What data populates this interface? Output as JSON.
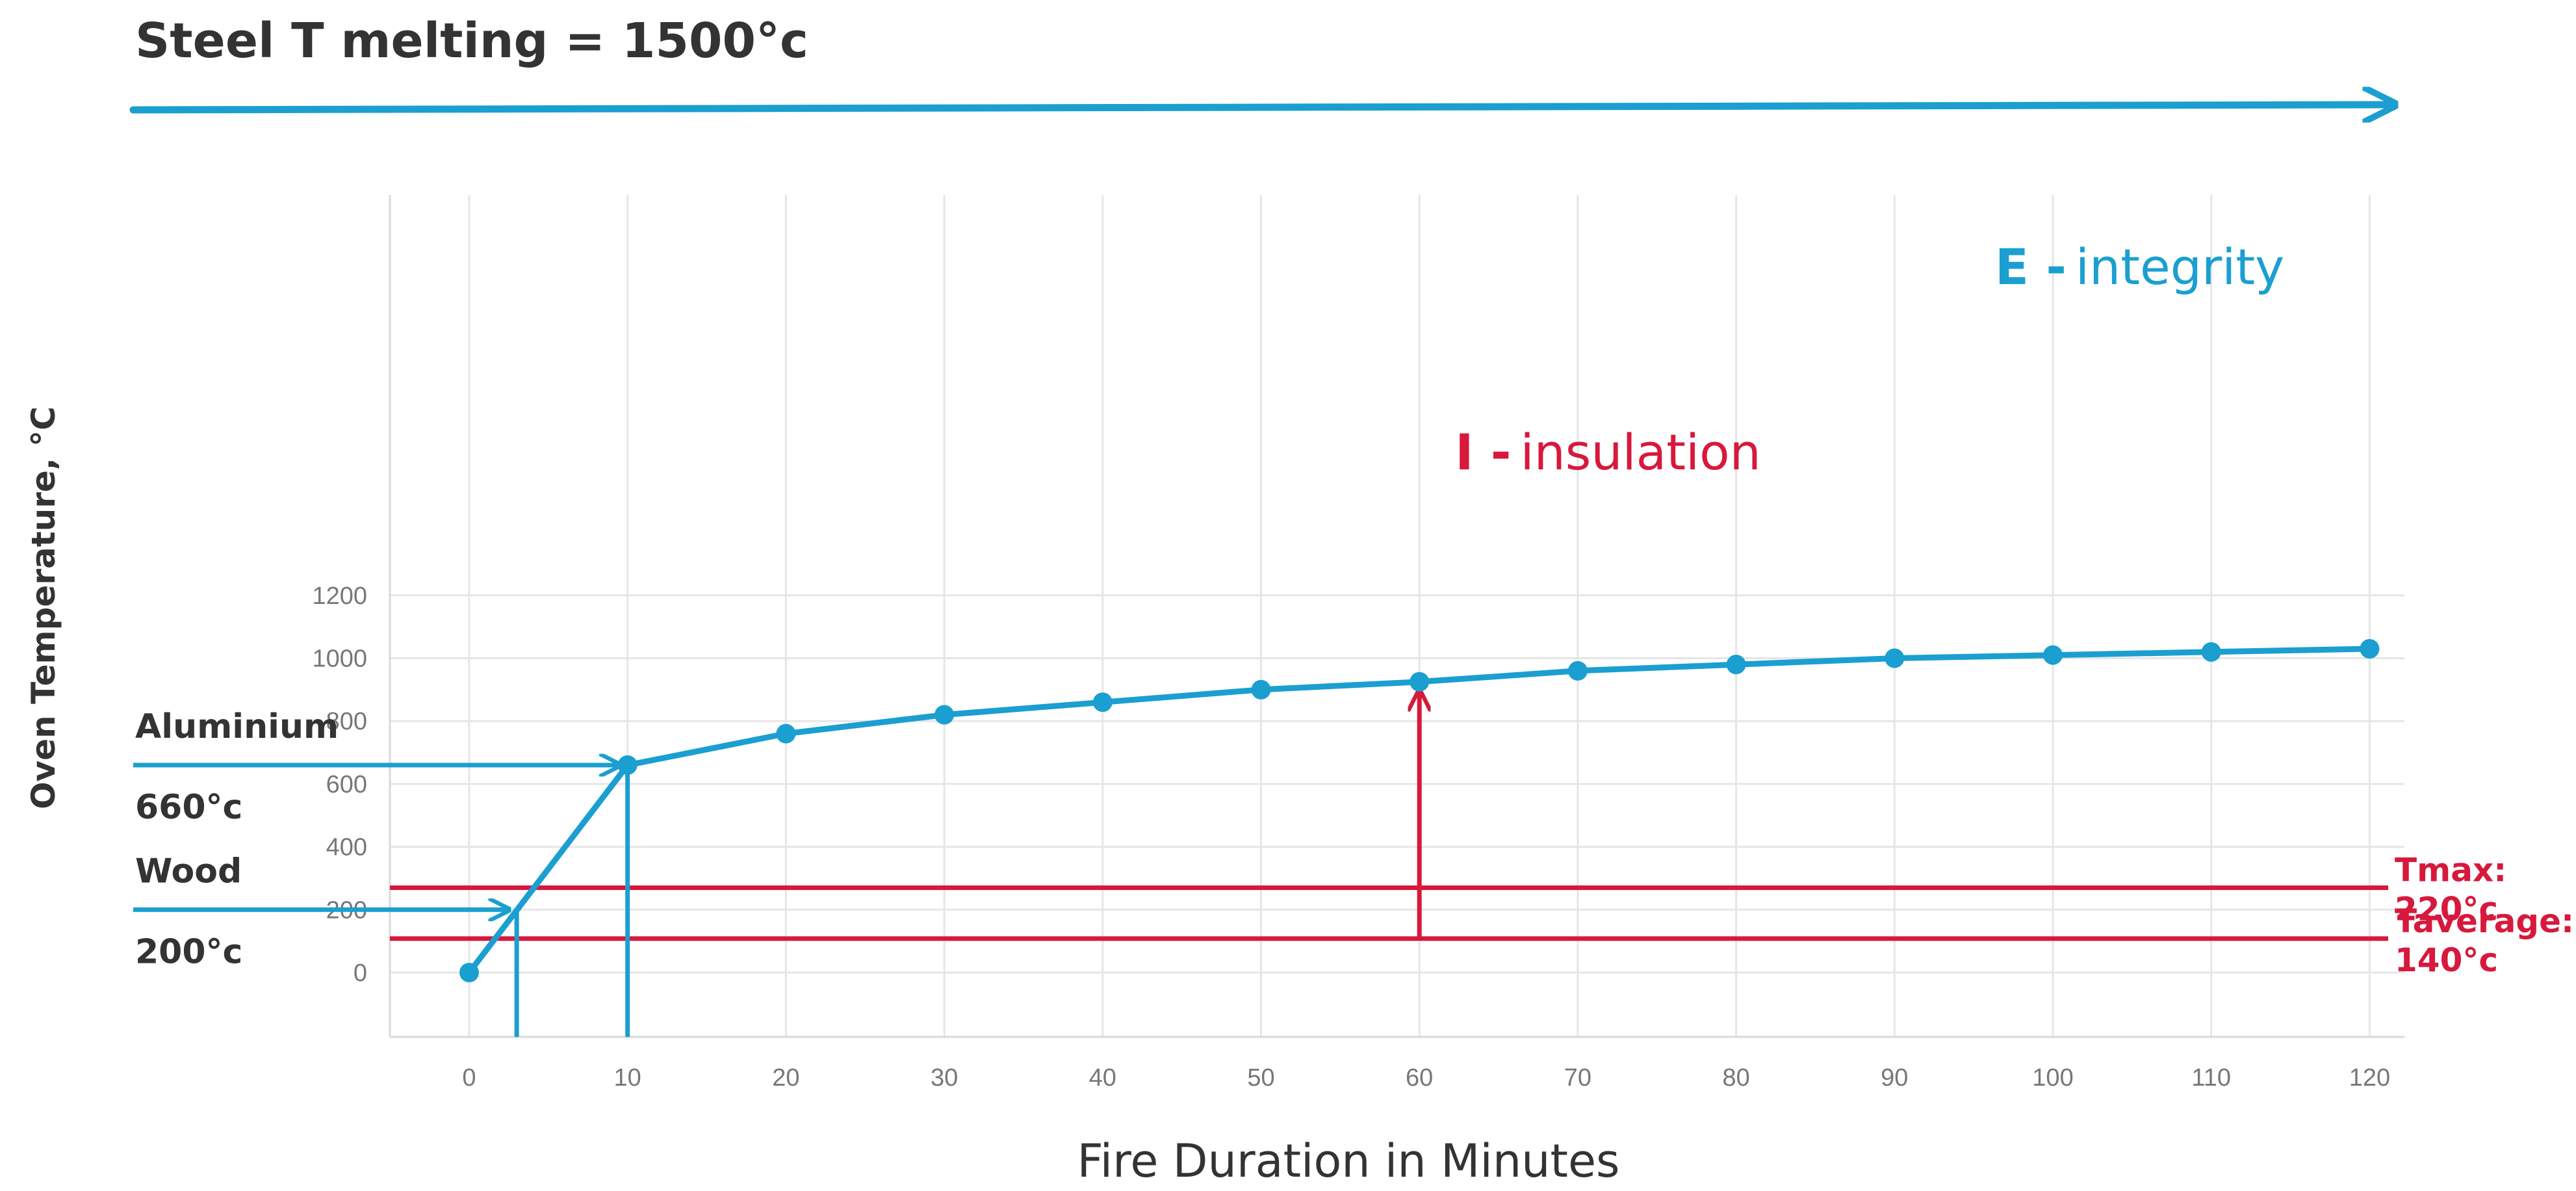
{
  "chart_data": {
    "type": "line",
    "title": "Steel T melting = 1500°c",
    "xlabel": "Fire Duration in Minutes",
    "ylabel": "Oven Temperature, °C",
    "x": [
      0,
      10,
      20,
      30,
      40,
      50,
      60,
      70,
      80,
      90,
      100,
      110,
      120
    ],
    "series": [
      {
        "name": "E - integrity",
        "values": [
          0,
          660,
          760,
          820,
          860,
          900,
          925,
          960,
          980,
          1000,
          1010,
          1020,
          1030
        ]
      }
    ],
    "xticks": [
      "0",
      "10",
      "20",
      "30",
      "40",
      "50",
      "60",
      "70",
      "80",
      "90",
      "100",
      "110",
      "120"
    ],
    "yticks": [
      "0",
      "200",
      "400",
      "600",
      "800",
      "1000",
      "1200"
    ],
    "xlim": [
      -5,
      122
    ],
    "ylim": [
      -100,
      1230
    ],
    "grid": true,
    "colors": {
      "curve": "#1a9fd0",
      "limits": "#d6193c",
      "grid": "#e6e6e6",
      "text": "#333333"
    },
    "series_label": {
      "bold": "E -",
      "rest": "integrity"
    },
    "insulation": {
      "bold": "I -",
      "rest": "insulation",
      "x": 60,
      "y_from": 108,
      "y_to": 925
    },
    "materials": [
      {
        "name": "Aluminium",
        "temp_label": "660°c",
        "temp": 660,
        "time": 10
      },
      {
        "name": "Wood",
        "temp_label": "200°c",
        "temp": 200,
        "time": 3
      }
    ],
    "limits": [
      {
        "label1": "Tmax:",
        "label2": "220°c",
        "y": 270
      },
      {
        "label1": "Taverage:",
        "label2": "140°c",
        "y": 108
      }
    ]
  }
}
